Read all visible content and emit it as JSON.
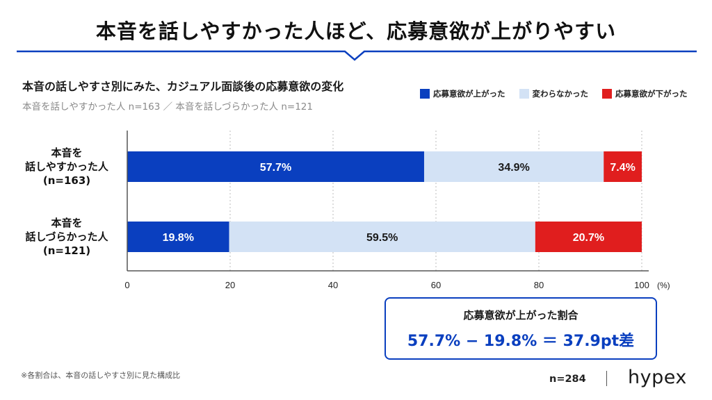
{
  "headline": "本音を話しやすかった人ほど、応募意欲が上がりやすい",
  "colors": {
    "accent": "#0a3fbf",
    "unchanged": "#d3e2f5",
    "decrease": "#e01e1e",
    "axis": "#555555",
    "grid": "#bbbbbb"
  },
  "chart_data": {
    "type": "bar",
    "orientation": "horizontal",
    "stacked": true,
    "title": "本音の話しやすさ別にみた、カジュアル面談後の応募意欲の変化",
    "subtitle": "本音を話しやすかった人 n=163 ／ 本音を話しづらかった人 n=121",
    "categories": [
      [
        "本音を",
        "話しやすかった人",
        "(n=163)"
      ],
      [
        "本音を",
        "話しづらかった人",
        "(n=121)"
      ]
    ],
    "series": [
      {
        "name": "応募意欲が上がった",
        "values": [
          57.7,
          19.8
        ],
        "labels": [
          "57.7%",
          "19.8%"
        ],
        "color": "#0a3fbf",
        "label_color": "#ffffff"
      },
      {
        "name": "変わらなかった",
        "values": [
          34.9,
          59.5
        ],
        "labels": [
          "34.9%",
          "59.5%"
        ],
        "color": "#d3e2f5",
        "label_color": "#1a1a1a"
      },
      {
        "name": "応募意欲が下がった",
        "values": [
          7.4,
          20.7
        ],
        "labels": [
          "7.4%",
          "20.7%"
        ],
        "color": "#e01e1e",
        "label_color": "#ffffff"
      }
    ],
    "xlim": [
      0,
      100
    ],
    "xticks": [
      "0",
      "20",
      "40",
      "60",
      "80",
      "100"
    ],
    "xunit": "(%)",
    "grid": true,
    "legend_position": "top-right"
  },
  "callout": {
    "title": "応募意欲が上がった割合",
    "formula": "57.7% − 19.8% ＝ 37.9pt差"
  },
  "footer": {
    "note": "※各割合は、本音の話しやすさ別に見た構成比",
    "sample": "n=284",
    "brand": "hypex"
  }
}
